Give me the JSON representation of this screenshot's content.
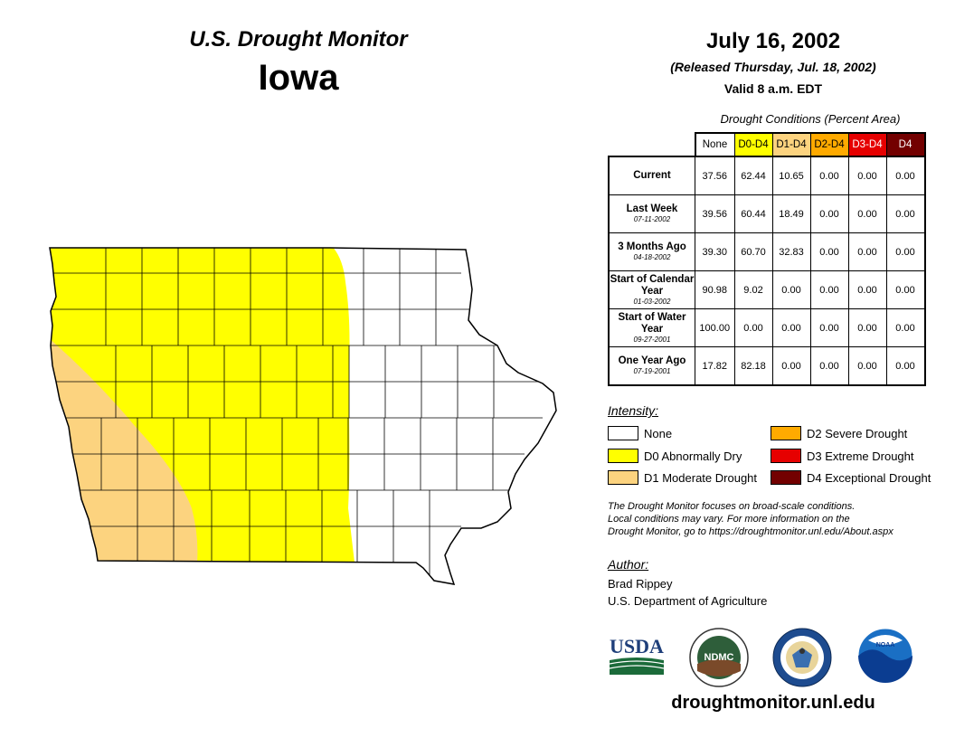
{
  "header": {
    "subtitle": "U.S. Drought Monitor",
    "state": "Iowa",
    "date": "July 16, 2002",
    "released": "(Released Thursday, Jul. 18, 2002)",
    "valid": "Valid 8 a.m. EDT"
  },
  "table": {
    "title": "Drought Conditions (Percent Area)",
    "columns": [
      "None",
      "D0-D4",
      "D1-D4",
      "D2-D4",
      "D3-D4",
      "D4"
    ],
    "column_colors": [
      "#ffffff",
      "#ffff00",
      "#fcd37f",
      "#ffaa00",
      "#e60000",
      "#730000"
    ],
    "rows": [
      {
        "label": "Current",
        "date": "",
        "values": [
          "37.56",
          "62.44",
          "10.65",
          "0.00",
          "0.00",
          "0.00"
        ]
      },
      {
        "label": "Last Week",
        "date": "07-11-2002",
        "values": [
          "39.56",
          "60.44",
          "18.49",
          "0.00",
          "0.00",
          "0.00"
        ]
      },
      {
        "label": "3 Months Ago",
        "date": "04-18-2002",
        "values": [
          "39.30",
          "60.70",
          "32.83",
          "0.00",
          "0.00",
          "0.00"
        ]
      },
      {
        "label": "Start of Calendar Year",
        "date": "01-03-2002",
        "values": [
          "90.98",
          "9.02",
          "0.00",
          "0.00",
          "0.00",
          "0.00"
        ]
      },
      {
        "label": "Start of Water Year",
        "date": "09-27-2001",
        "values": [
          "100.00",
          "0.00",
          "0.00",
          "0.00",
          "0.00",
          "0.00"
        ]
      },
      {
        "label": "One Year Ago",
        "date": "07-19-2001",
        "values": [
          "17.82",
          "82.18",
          "0.00",
          "0.00",
          "0.00",
          "0.00"
        ]
      }
    ]
  },
  "legend": {
    "title": "Intensity:",
    "items": [
      {
        "label": "None",
        "color": "#ffffff"
      },
      {
        "label": "D0 Abnormally Dry",
        "color": "#ffff00"
      },
      {
        "label": "D1 Moderate Drought",
        "color": "#fcd37f"
      },
      {
        "label": "D2 Severe Drought",
        "color": "#ffaa00"
      },
      {
        "label": "D3 Extreme Drought",
        "color": "#e60000"
      },
      {
        "label": "D4 Exceptional Drought",
        "color": "#730000"
      }
    ]
  },
  "note": {
    "line1": "The Drought Monitor focuses on broad-scale conditions.",
    "line2": "Local conditions may vary. For more information on the",
    "line3": "Drought Monitor, go to https://droughtmonitor.unl.edu/About.aspx"
  },
  "author": {
    "title": "Author:",
    "name": "Brad Rippey",
    "org": "U.S. Department of Agriculture"
  },
  "logos": {
    "usda": "USDA",
    "ndmc": "NDMC",
    "noaa": "NOAA"
  },
  "website": "droughtmonitor.unl.edu"
}
